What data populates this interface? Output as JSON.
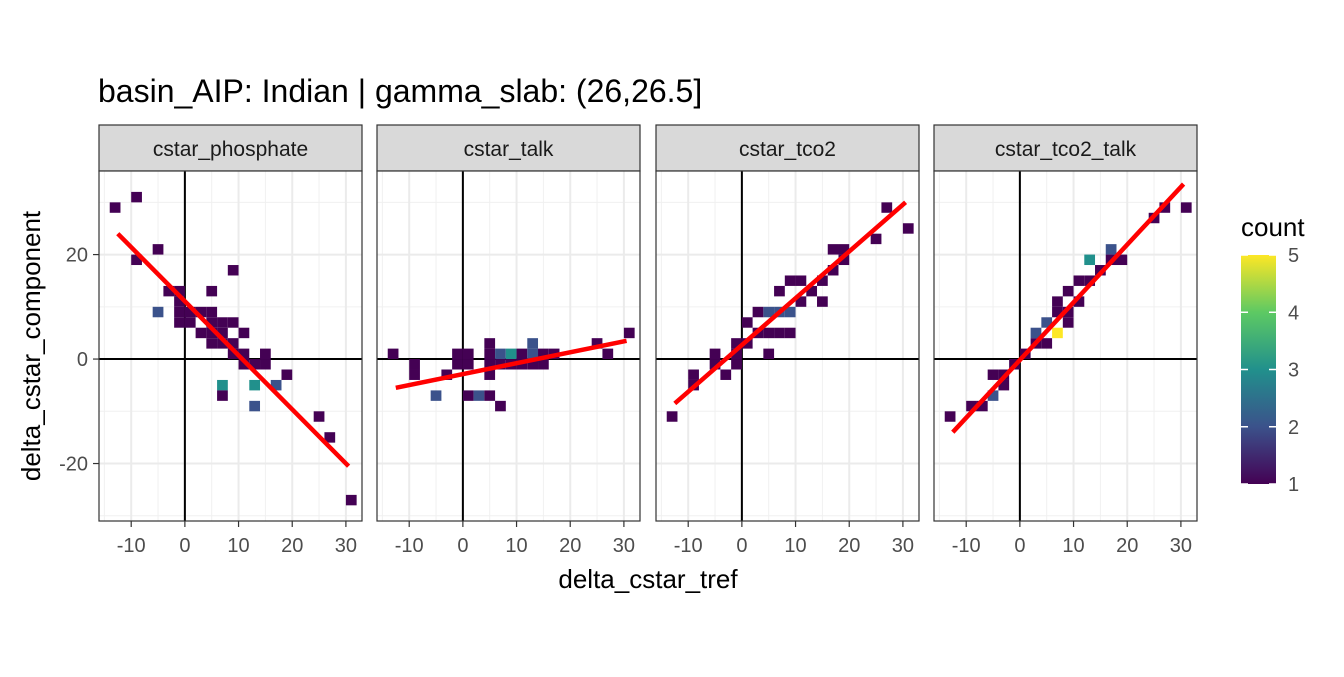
{
  "chart_data": {
    "type": "heatmap",
    "title": "basin_AIP: Indian | gamma_slab:  (26,26.5]",
    "xlabel": "delta_cstar_tref",
    "ylabel": "delta_cstar_component",
    "xlim": [
      -16,
      33
    ],
    "ylim": [
      -31,
      36
    ],
    "x_ticks": [
      -10,
      0,
      10,
      20,
      30
    ],
    "y_ticks": [
      -20,
      0,
      20
    ],
    "bin_width": 2,
    "grid": true,
    "legend": {
      "title": "count",
      "position": "right",
      "min": 1,
      "max": 5,
      "ticks": [
        1,
        2,
        3,
        4,
        5
      ]
    },
    "colormap": [
      "#440154",
      "#3b528b",
      "#21908c",
      "#5dc963",
      "#fde725"
    ],
    "fit_line_color": "#ff0000",
    "panels": [
      {
        "label": "cstar_phosphate",
        "fit": {
          "x": [
            -12.5,
            30.5
          ],
          "y": [
            24,
            -20.5
          ]
        },
        "bins": [
          [
            -13,
            29,
            1
          ],
          [
            -9,
            31,
            1
          ],
          [
            -9,
            19,
            1
          ],
          [
            -5,
            21,
            1
          ],
          [
            -5,
            9,
            2
          ],
          [
            -3,
            13,
            1
          ],
          [
            -1,
            13,
            1
          ],
          [
            -1,
            11,
            1
          ],
          [
            -1,
            9,
            1
          ],
          [
            -1,
            7,
            1
          ],
          [
            1,
            9,
            1
          ],
          [
            1,
            7,
            1
          ],
          [
            3,
            9,
            1
          ],
          [
            3,
            5,
            1
          ],
          [
            5,
            13,
            1
          ],
          [
            5,
            9,
            1
          ],
          [
            5,
            7,
            1
          ],
          [
            5,
            5,
            1
          ],
          [
            5,
            3,
            1
          ],
          [
            7,
            7,
            1
          ],
          [
            7,
            5,
            1
          ],
          [
            7,
            3,
            1
          ],
          [
            7,
            -5,
            3
          ],
          [
            7,
            -7,
            1
          ],
          [
            9,
            17,
            1
          ],
          [
            9,
            7,
            1
          ],
          [
            9,
            3,
            1
          ],
          [
            9,
            1,
            1
          ],
          [
            11,
            5,
            1
          ],
          [
            11,
            1,
            1
          ],
          [
            11,
            -1,
            1
          ],
          [
            13,
            -1,
            1
          ],
          [
            13,
            -5,
            3
          ],
          [
            13,
            -9,
            2
          ],
          [
            15,
            1,
            1
          ],
          [
            15,
            -1,
            1
          ],
          [
            17,
            -5,
            2
          ],
          [
            19,
            -3,
            1
          ],
          [
            25,
            -11,
            1
          ],
          [
            27,
            -15,
            1
          ],
          [
            31,
            -27,
            1
          ]
        ]
      },
      {
        "label": "cstar_talk",
        "fit": {
          "x": [
            -12.5,
            30.5
          ],
          "y": [
            -5.5,
            3.5
          ]
        },
        "bins": [
          [
            -13,
            1,
            1
          ],
          [
            -9,
            -1,
            1
          ],
          [
            -9,
            -3,
            1
          ],
          [
            -5,
            -7,
            2
          ],
          [
            -3,
            -3,
            1
          ],
          [
            -1,
            1,
            1
          ],
          [
            -1,
            -1,
            1
          ],
          [
            1,
            1,
            1
          ],
          [
            1,
            -1,
            1
          ],
          [
            1,
            -7,
            1
          ],
          [
            3,
            -7,
            2
          ],
          [
            5,
            3,
            1
          ],
          [
            5,
            1,
            1
          ],
          [
            5,
            -1,
            1
          ],
          [
            5,
            -3,
            1
          ],
          [
            5,
            -7,
            1
          ],
          [
            7,
            1,
            2
          ],
          [
            7,
            -1,
            1
          ],
          [
            7,
            -9,
            1
          ],
          [
            9,
            1,
            3
          ],
          [
            9,
            -1,
            1
          ],
          [
            11,
            1,
            1
          ],
          [
            11,
            -1,
            1
          ],
          [
            13,
            3,
            2
          ],
          [
            13,
            1,
            2
          ],
          [
            13,
            -1,
            1
          ],
          [
            15,
            1,
            1
          ],
          [
            15,
            -1,
            1
          ],
          [
            17,
            1,
            1
          ],
          [
            25,
            3,
            1
          ],
          [
            27,
            1,
            1
          ],
          [
            31,
            5,
            1
          ]
        ]
      },
      {
        "label": "cstar_tco2",
        "fit": {
          "x": [
            -12.5,
            30.5
          ],
          "y": [
            -8.5,
            30
          ]
        },
        "bins": [
          [
            -13,
            -11,
            1
          ],
          [
            -9,
            -5,
            1
          ],
          [
            -9,
            -3,
            1
          ],
          [
            -5,
            1,
            1
          ],
          [
            -5,
            -1,
            1
          ],
          [
            -3,
            -3,
            1
          ],
          [
            -1,
            3,
            1
          ],
          [
            -1,
            1,
            1
          ],
          [
            -1,
            -1,
            1
          ],
          [
            1,
            7,
            1
          ],
          [
            1,
            3,
            1
          ],
          [
            3,
            9,
            1
          ],
          [
            3,
            5,
            1
          ],
          [
            5,
            9,
            2
          ],
          [
            5,
            5,
            1
          ],
          [
            5,
            1,
            1
          ],
          [
            7,
            9,
            2
          ],
          [
            7,
            13,
            1
          ],
          [
            7,
            5,
            1
          ],
          [
            9,
            15,
            1
          ],
          [
            9,
            9,
            2
          ],
          [
            9,
            5,
            1
          ],
          [
            11,
            15,
            1
          ],
          [
            11,
            11,
            1
          ],
          [
            13,
            13,
            1
          ],
          [
            15,
            15,
            1
          ],
          [
            15,
            11,
            1
          ],
          [
            17,
            21,
            1
          ],
          [
            17,
            17,
            1
          ],
          [
            19,
            21,
            1
          ],
          [
            19,
            19,
            1
          ],
          [
            25,
            23,
            1
          ],
          [
            27,
            29,
            1
          ],
          [
            31,
            25,
            1
          ]
        ]
      },
      {
        "label": "cstar_tco2_talk",
        "fit": {
          "x": [
            -12.5,
            30.5
          ],
          "y": [
            -14,
            33.5
          ]
        },
        "bins": [
          [
            -13,
            -11,
            1
          ],
          [
            -9,
            -9,
            1
          ],
          [
            -7,
            -9,
            1
          ],
          [
            -5,
            -3,
            1
          ],
          [
            -5,
            -7,
            2
          ],
          [
            -3,
            -3,
            1
          ],
          [
            -3,
            -5,
            1
          ],
          [
            -1,
            -1,
            1
          ],
          [
            1,
            1,
            1
          ],
          [
            3,
            3,
            1
          ],
          [
            3,
            5,
            2
          ],
          [
            5,
            7,
            2
          ],
          [
            5,
            3,
            1
          ],
          [
            7,
            5,
            5
          ],
          [
            7,
            11,
            1
          ],
          [
            7,
            9,
            1
          ],
          [
            9,
            13,
            1
          ],
          [
            9,
            9,
            1
          ],
          [
            9,
            7,
            1
          ],
          [
            11,
            15,
            1
          ],
          [
            11,
            11,
            1
          ],
          [
            13,
            19,
            3
          ],
          [
            13,
            15,
            1
          ],
          [
            15,
            17,
            1
          ],
          [
            17,
            21,
            2
          ],
          [
            17,
            19,
            1
          ],
          [
            19,
            19,
            1
          ],
          [
            25,
            27,
            1
          ],
          [
            27,
            29,
            1
          ],
          [
            31,
            29,
            1
          ]
        ]
      }
    ]
  }
}
